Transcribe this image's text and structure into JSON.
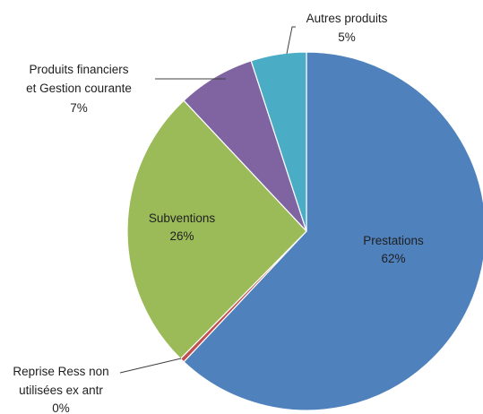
{
  "chart_data": {
    "type": "pie",
    "title": "",
    "slices": [
      {
        "name": "Prestations",
        "percent_label": "62%",
        "value": 62,
        "color": "#4F81BD"
      },
      {
        "name": "Reprise Ress non utilisées ex antr",
        "percent_label": "0%",
        "value": 0.4,
        "color": "#C0504D"
      },
      {
        "name": "Subventions",
        "percent_label": "26%",
        "value": 25.6,
        "color": "#9BBB59"
      },
      {
        "name": "Produits financiers et Gestion courante",
        "percent_label": "7%",
        "value": 7,
        "color": "#8064A2"
      },
      {
        "name": "Autres produits",
        "percent_label": "5%",
        "value": 5,
        "color": "#4BACC6"
      }
    ],
    "label_lines": {
      "prestations": [
        "Prestations",
        "62%"
      ],
      "reprise": [
        "Reprise Ress non",
        "utilisées ex antr",
        "0%"
      ],
      "subventions": [
        "Subventions",
        "26%"
      ],
      "produits_financiers": [
        "Produits financiers",
        "et Gestion courante",
        "7%"
      ],
      "autres": [
        "Autres produits",
        "5%"
      ]
    },
    "legend": "none",
    "start_angle_deg": 0,
    "direction": "clockwise"
  }
}
